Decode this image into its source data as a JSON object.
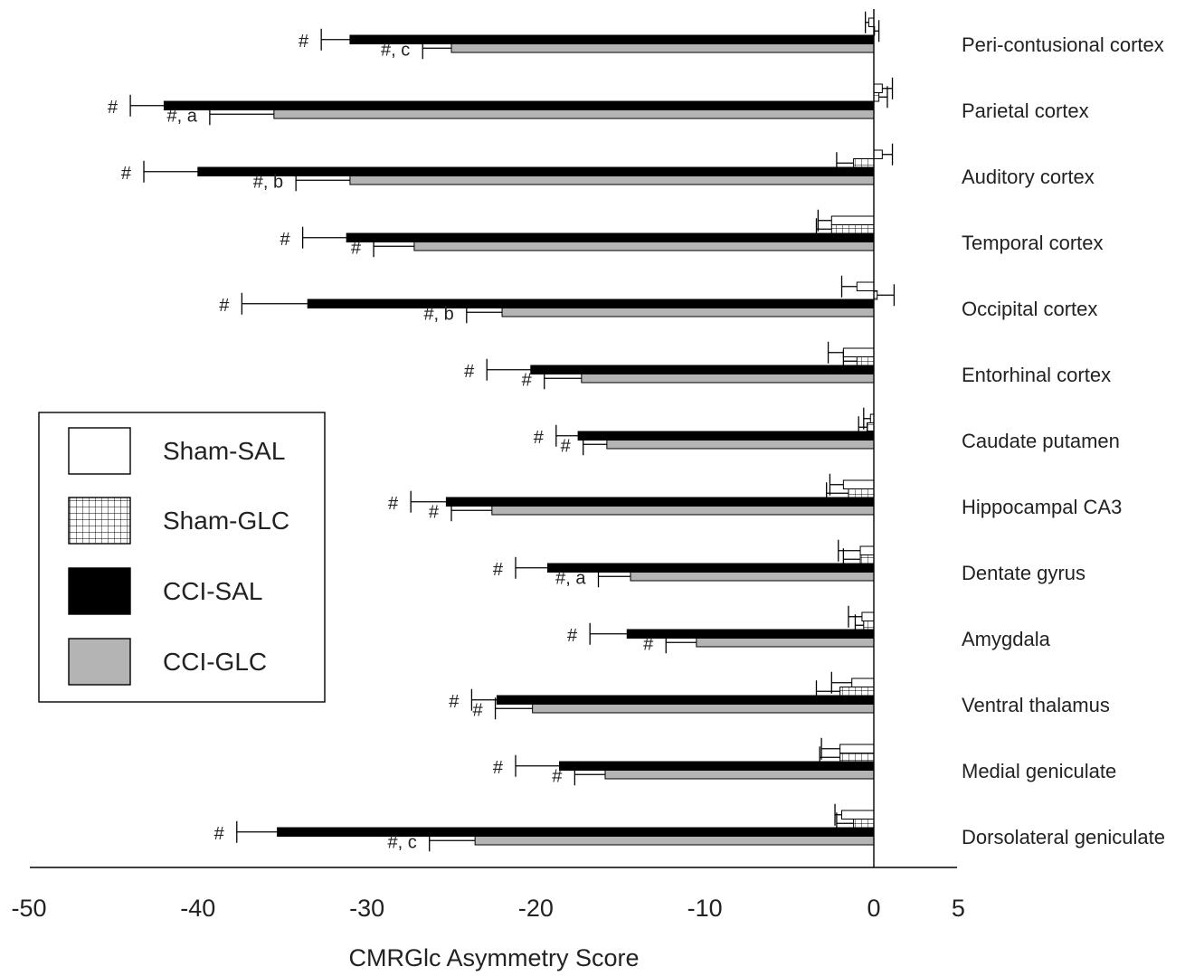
{
  "chart_data": {
    "type": "bar",
    "orientation": "horizontal",
    "xlabel": "CMRGlc Asymmetry Score",
    "xlim": [
      -50,
      5
    ],
    "xticks": [
      -50,
      -40,
      -30,
      -20,
      -10,
      0,
      5
    ],
    "grid": false,
    "legend_position": "left",
    "categories": [
      "Peri-contusional cortex",
      "Parietal cortex",
      "Auditory cortex",
      "Temporal cortex",
      "Occipital cortex",
      "Entorhinal cortex",
      "Caudate putamen",
      "Hippocampal CA3",
      "Dentate gyrus",
      "Amygdala",
      "Ventral thalamus",
      "Medial geniculate",
      "Dorsolateral geniculate"
    ],
    "series": [
      {
        "name": "Sham-SAL",
        "fill": "#ffffff",
        "pattern": "none",
        "values": [
          -0.3,
          0.5,
          0.5,
          -2.5,
          -1.0,
          -1.8,
          -0.2,
          -1.8,
          -0.8,
          -0.7,
          -1.3,
          -2.0,
          -1.9
        ],
        "errors": [
          0.2,
          0.6,
          0.6,
          0.8,
          0.9,
          0.9,
          0.4,
          0.8,
          1.3,
          0.8,
          1.2,
          1.1,
          0.4
        ]
      },
      {
        "name": "Sham-GLC",
        "fill": "#ffffff",
        "pattern": "grid",
        "values": [
          0.0,
          0.3,
          -1.2,
          -2.5,
          0.2,
          -1.0,
          -0.4,
          -1.5,
          -0.8,
          -0.6,
          -2.0,
          -2.0,
          -1.2
        ],
        "errors": [
          0.3,
          0.5,
          1.0,
          0.9,
          1.0,
          0.8,
          0.5,
          1.3,
          1.0,
          0.5,
          1.4,
          1.2,
          1.0
        ]
      },
      {
        "name": "CCI-SAL",
        "fill": "#000000",
        "pattern": "none",
        "values": [
          -31.0,
          -42.0,
          -40.0,
          -31.2,
          -33.5,
          -20.3,
          -17.5,
          -25.3,
          -19.3,
          -14.6,
          -22.3,
          -18.6,
          -35.3
        ],
        "errors": [
          1.7,
          2.0,
          3.2,
          2.6,
          3.9,
          2.6,
          1.3,
          2.1,
          1.9,
          2.2,
          1.5,
          2.6,
          2.4
        ],
        "annotations": [
          "#",
          "#",
          "#",
          "#",
          "#",
          "#",
          "#",
          "#",
          "#",
          "#",
          "#",
          "#",
          "#"
        ]
      },
      {
        "name": "CCI-GLC",
        "fill": "#b4b4b4",
        "pattern": "none",
        "values": [
          -25.0,
          -35.5,
          -31.0,
          -27.2,
          -22.0,
          -17.3,
          -15.8,
          -22.6,
          -14.4,
          -10.5,
          -20.2,
          -15.9,
          -23.6
        ],
        "errors": [
          1.7,
          3.8,
          3.2,
          2.4,
          2.1,
          2.2,
          1.4,
          2.4,
          1.9,
          1.8,
          2.2,
          1.8,
          2.7
        ],
        "annotations": [
          "#, c",
          "#, a",
          "#, b",
          "#",
          "#, b",
          "#",
          "#",
          "#",
          "#, a",
          "#",
          "#",
          "#",
          "#, c"
        ]
      }
    ]
  }
}
